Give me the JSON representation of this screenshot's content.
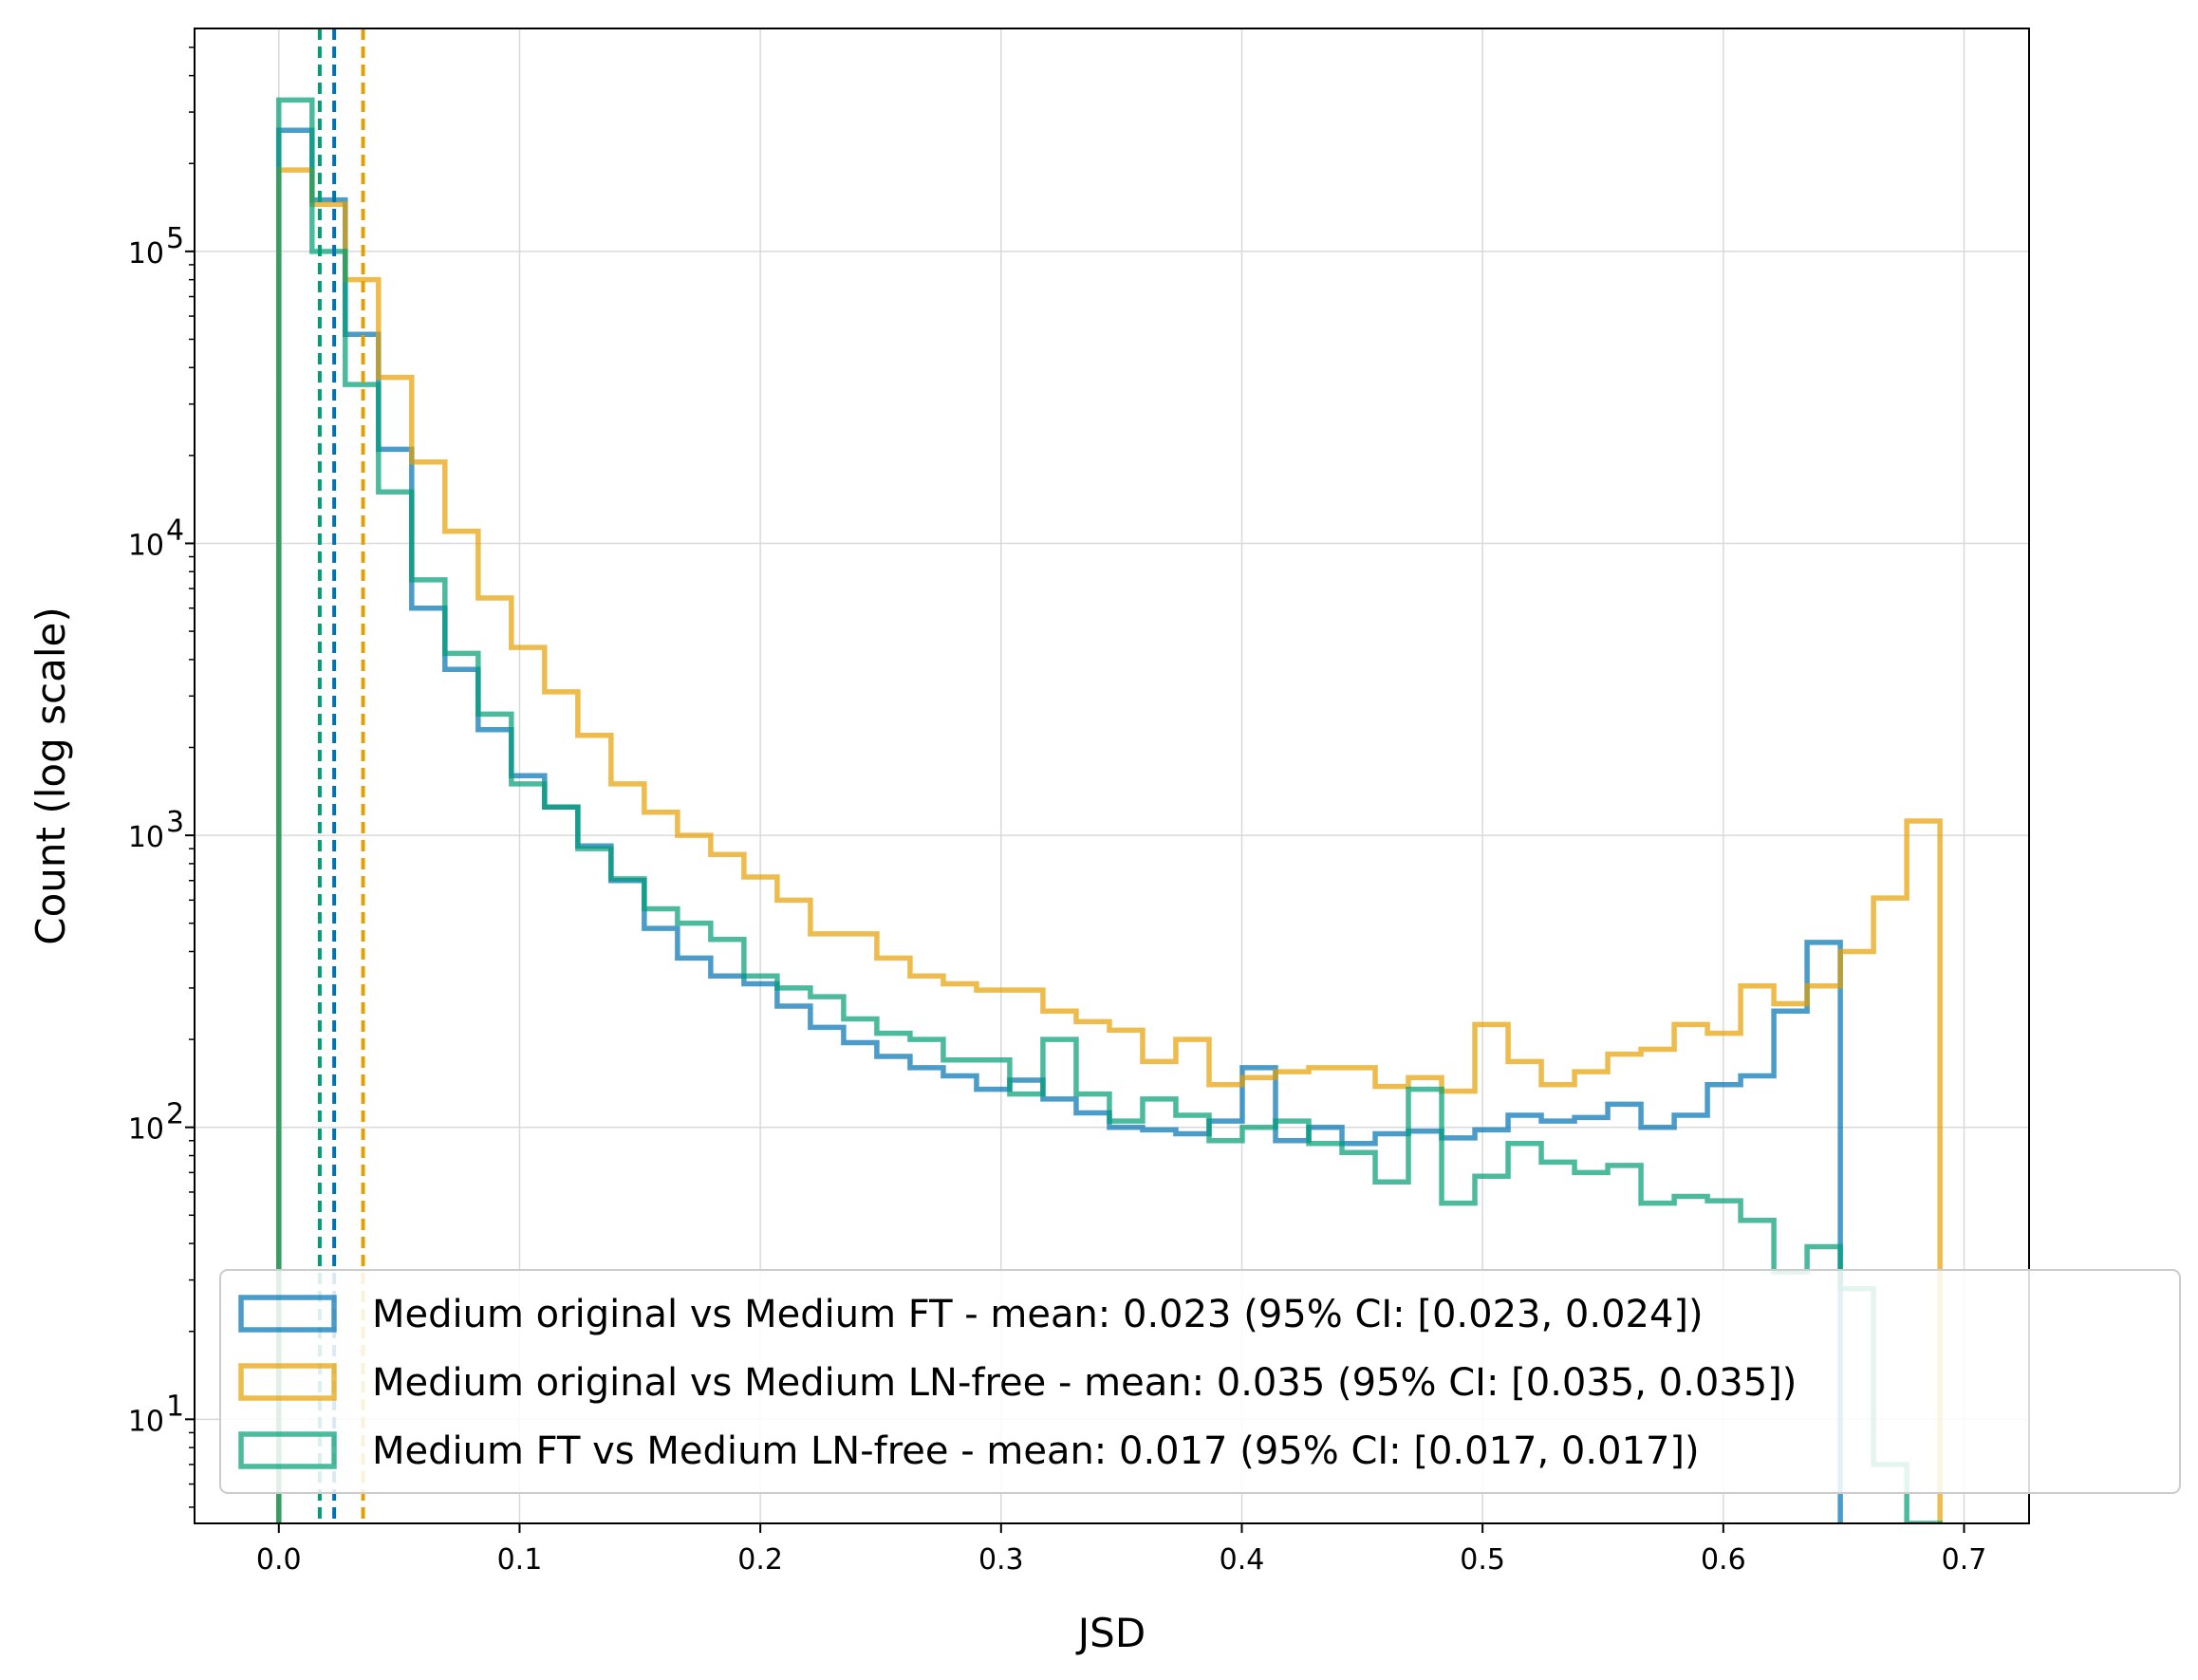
{
  "chart_data": {
    "type": "histogram",
    "xlabel": "JSD",
    "ylabel": "Count (log scale)",
    "xlim": [
      -0.035,
      0.727
    ],
    "ylim": [
      4.4,
      580000
    ],
    "yscale": "log",
    "grid": true,
    "legend_position": "lower-right",
    "bin_width": 0.0138,
    "bin_start": 0.0,
    "xticks": [
      "0.0",
      "0.1",
      "0.2",
      "0.3",
      "0.4",
      "0.5",
      "0.6",
      "0.7"
    ],
    "xtick_values": [
      0.0,
      0.1,
      0.2,
      0.3,
      0.4,
      0.5,
      0.6,
      0.7
    ],
    "yticks": [
      {
        "value": 10,
        "base": "10",
        "exp": "1"
      },
      {
        "value": 100,
        "base": "10",
        "exp": "2"
      },
      {
        "value": 1000,
        "base": "10",
        "exp": "3"
      },
      {
        "value": 10000,
        "base": "10",
        "exp": "4"
      },
      {
        "value": 100000,
        "base": "10",
        "exp": "5"
      }
    ],
    "series": [
      {
        "name": "Medium original vs Medium FT - mean: 0.023 (95% CI: [0.023, 0.024])",
        "color": "#0072b2",
        "mean": 0.023,
        "counts": [
          260000,
          150000,
          52000,
          21000,
          6000,
          3700,
          2300,
          1600,
          1250,
          920,
          700,
          480,
          380,
          330,
          310,
          260,
          220,
          195,
          175,
          160,
          150,
          135,
          145,
          125,
          112,
          100,
          98,
          95,
          105,
          160,
          90,
          100,
          88,
          95,
          97,
          92,
          98,
          110,
          105,
          108,
          120,
          100,
          110,
          140,
          150,
          250,
          430
        ]
      },
      {
        "name": "Medium original vs Medium LN-free - mean: 0.035 (95% CI: [0.035, 0.035])",
        "color": "#e69f00",
        "mean": 0.035,
        "counts": [
          190000,
          145000,
          80000,
          37000,
          19000,
          11000,
          6500,
          4400,
          3100,
          2200,
          1500,
          1200,
          1000,
          860,
          720,
          600,
          460,
          460,
          380,
          330,
          310,
          295,
          295,
          250,
          230,
          215,
          168,
          200,
          140,
          148,
          155,
          160,
          160,
          138,
          148,
          133,
          225,
          168,
          140,
          155,
          178,
          185,
          225,
          210,
          305,
          265,
          305,
          400,
          610,
          1120
        ]
      },
      {
        "name": "Medium FT vs Medium LN-free - mean: 0.017 (95% CI: [0.017, 0.017])",
        "color": "#009e73",
        "mean": 0.017,
        "counts": [
          330000,
          100000,
          35000,
          15000,
          7500,
          4200,
          2600,
          1500,
          1250,
          900,
          710,
          560,
          500,
          440,
          330,
          300,
          280,
          235,
          210,
          200,
          170,
          170,
          130,
          200,
          130,
          105,
          125,
          110,
          90,
          100,
          105,
          88,
          82,
          65,
          135,
          55,
          68,
          88,
          76,
          70,
          74,
          55,
          58,
          56,
          48,
          32,
          39,
          28,
          7,
          4.4
        ]
      }
    ]
  }
}
